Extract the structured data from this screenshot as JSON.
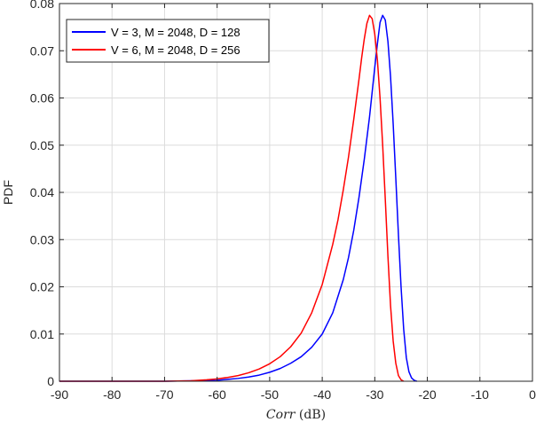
{
  "chart_data": {
    "type": "line",
    "title": "",
    "xlabel_italic": "Corr",
    "xlabel_unit": " (dB)",
    "ylabel": "PDF",
    "xlim": [
      -90,
      0
    ],
    "ylim": [
      0,
      0.08
    ],
    "xticks": [
      -90,
      -80,
      -70,
      -60,
      -50,
      -40,
      -30,
      -20,
      -10,
      0
    ],
    "xtick_labels": [
      "-90",
      "-80",
      "-70",
      "-60",
      "-50",
      "-40",
      "-30",
      "-20",
      "-10",
      "0"
    ],
    "yticks": [
      0,
      0.01,
      0.02,
      0.03,
      0.04,
      0.05,
      0.06,
      0.07,
      0.08
    ],
    "ytick_labels": [
      "0",
      "0.01",
      "0.02",
      "0.03",
      "0.04",
      "0.05",
      "0.06",
      "0.07",
      "0.08"
    ],
    "grid": true,
    "legend_position": "top-left",
    "series": [
      {
        "name": "V = 3, M = 2048, D = 128",
        "color": "#0000ff",
        "x": [
          -90,
          -70,
          -65,
          -60,
          -58,
          -56,
          -54,
          -52,
          -50,
          -48,
          -46,
          -44,
          -42,
          -40,
          -38,
          -36,
          -35,
          -34,
          -33,
          -32,
          -31,
          -30,
          -29.5,
          -29,
          -28.5,
          -28,
          -27.5,
          -27,
          -26.5,
          -26,
          -25.5,
          -25,
          -24.5,
          -24,
          -23.5,
          -23,
          -22.5,
          -22
        ],
        "y": [
          0,
          0,
          0.0001,
          0.0002,
          0.0004,
          0.0006,
          0.0009,
          0.0013,
          0.0019,
          0.0027,
          0.0038,
          0.0052,
          0.0072,
          0.01,
          0.0145,
          0.0215,
          0.0262,
          0.032,
          0.039,
          0.047,
          0.056,
          0.0665,
          0.0715,
          0.076,
          0.0775,
          0.0765,
          0.072,
          0.0645,
          0.0545,
          0.043,
          0.031,
          0.02,
          0.011,
          0.005,
          0.002,
          0.0007,
          0.0002,
          0
        ]
      },
      {
        "name": "V = 6, M = 2048, D = 256",
        "color": "#ff0000",
        "x": [
          -90,
          -70,
          -65,
          -62,
          -60,
          -58,
          -56,
          -54,
          -52,
          -50,
          -48,
          -46,
          -44,
          -42,
          -40,
          -38,
          -37,
          -36,
          -35,
          -34,
          -33,
          -32.5,
          -32,
          -31.5,
          -31,
          -30.5,
          -30,
          -29.5,
          -29,
          -28.5,
          -28,
          -27.5,
          -27,
          -26.5,
          -26,
          -25.5,
          -25,
          -24.5
        ],
        "y": [
          0,
          0,
          0.0001,
          0.0003,
          0.0005,
          0.0008,
          0.0012,
          0.0018,
          0.0026,
          0.0037,
          0.0052,
          0.0073,
          0.0102,
          0.0145,
          0.0205,
          0.029,
          0.0342,
          0.0405,
          0.0475,
          0.0555,
          0.064,
          0.0685,
          0.0725,
          0.0758,
          0.0775,
          0.0768,
          0.0735,
          0.068,
          0.06,
          0.05,
          0.0385,
          0.0265,
          0.016,
          0.0085,
          0.0038,
          0.0012,
          0.0003,
          0
        ]
      }
    ]
  }
}
